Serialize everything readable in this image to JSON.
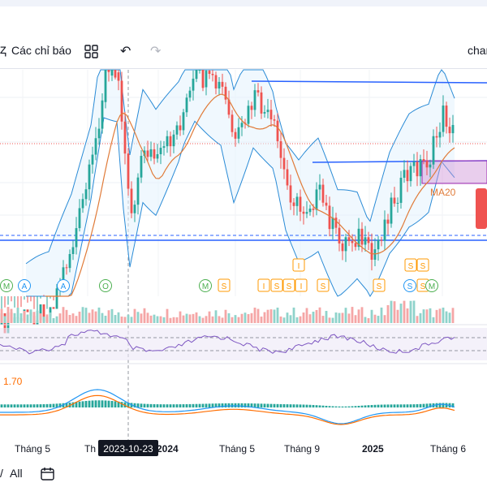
{
  "toolbar": {
    "indicators_label": "Các chỉ báo",
    "right_label": "char"
  },
  "bottom": {
    "all_label": "All"
  },
  "colors": {
    "up": "#26a69a",
    "down": "#ef5350",
    "band": "#2a8bd6",
    "ma": "#e07b39",
    "hline": "#2962ff",
    "rsi": "#7e57c2",
    "macd": "#2196f3",
    "signal": "#ff6d00",
    "event_green": "#4caf50",
    "event_blue": "#2196f3",
    "event_orange": "#ff9800"
  },
  "chart_data": {
    "type": "candlestick",
    "x_labels": [
      "Tháng 5",
      "Th",
      "2024",
      "Tháng 5",
      "Tháng 9",
      "2025",
      "Tháng 6"
    ],
    "crosshair_label": "2023-10-23",
    "ma_label": "MA20",
    "macd_value_label": "1.70",
    "event_markers": [
      {
        "label": "M",
        "color": "green",
        "row": "low"
      },
      {
        "label": "A",
        "color": "blue",
        "row": "low"
      },
      {
        "label": "A",
        "color": "blue",
        "row": "low"
      },
      {
        "label": "O",
        "color": "green",
        "row": "low"
      },
      {
        "label": "M",
        "color": "green",
        "row": "low"
      },
      {
        "label": "S",
        "color": "orange",
        "row": "low"
      },
      {
        "label": "I",
        "color": "orange",
        "row": "low"
      },
      {
        "label": "S",
        "color": "orange",
        "row": "low"
      },
      {
        "label": "S",
        "color": "orange",
        "row": "low"
      },
      {
        "label": "I",
        "color": "orange",
        "row": "low"
      },
      {
        "label": "S",
        "color": "orange",
        "row": "low"
      },
      {
        "label": "I",
        "color": "orange",
        "row": "high"
      },
      {
        "label": "S",
        "color": "orange",
        "row": "low"
      },
      {
        "label": "S",
        "color": "orange",
        "row": "high"
      },
      {
        "label": "S",
        "color": "orange",
        "row": "high"
      },
      {
        "label": "S",
        "color": "blue",
        "row": "low"
      },
      {
        "label": "S",
        "color": "orange",
        "row": "low"
      },
      {
        "label": "M",
        "color": "green",
        "row": "low"
      }
    ]
  }
}
